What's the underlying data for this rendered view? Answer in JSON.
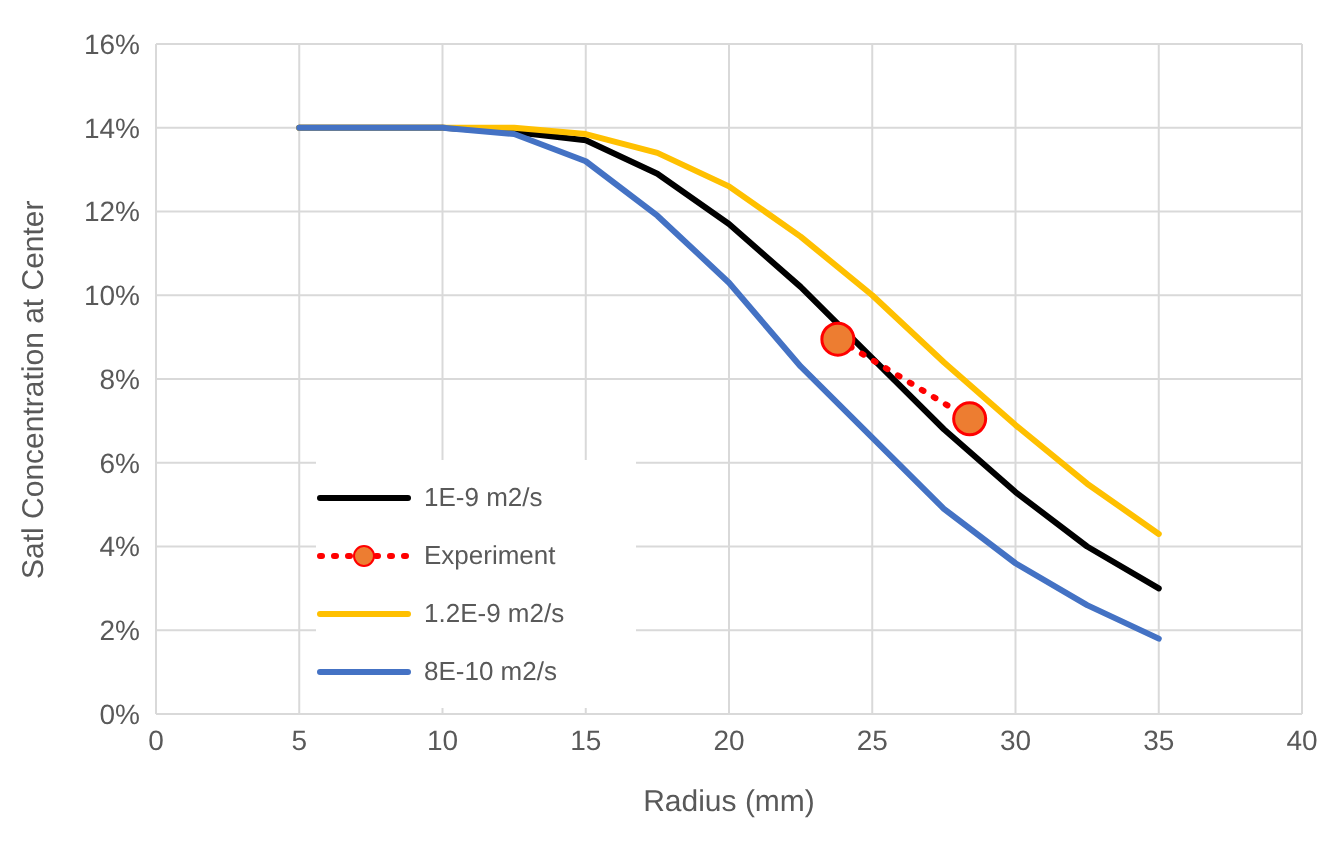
{
  "chart_data": {
    "type": "line",
    "xlabel": "Radius (mm)",
    "ylabel": "Satl Concentration at Center",
    "xlim": [
      0,
      40
    ],
    "xticks": [
      0,
      5,
      10,
      15,
      20,
      25,
      30,
      35,
      40
    ],
    "ylim": [
      0,
      16
    ],
    "yticks": [
      {
        "value": 0,
        "label": "0%"
      },
      {
        "value": 2,
        "label": "2%"
      },
      {
        "value": 4,
        "label": "4%"
      },
      {
        "value": 6,
        "label": "6%"
      },
      {
        "value": 8,
        "label": "8%"
      },
      {
        "value": 10,
        "label": "10%"
      },
      {
        "value": 12,
        "label": "12%"
      },
      {
        "value": 14,
        "label": "14%"
      },
      {
        "value": 16,
        "label": "16%"
      }
    ],
    "grid": true,
    "legend": "left",
    "marker": "none",
    "line_style": "solid",
    "x": [
      5,
      10,
      12.5,
      15,
      17.5,
      20,
      22.5,
      25,
      27.5,
      30,
      32.5,
      35
    ],
    "series": [
      {
        "name": "1E-9 m2/s",
        "color": "#000000",
        "values": [
          14,
          14,
          13.9,
          13.7,
          12.9,
          11.7,
          10.2,
          8.5,
          6.8,
          5.3,
          4.0,
          3.0
        ]
      },
      {
        "name": "Experiment",
        "color": "#ed7d31",
        "type": "line",
        "marker": "circle",
        "line_style": "dotted",
        "x": [
          23.8,
          28.4
        ],
        "values": [
          8.95,
          7.05
        ]
      },
      {
        "name": "1.2E-9 m2/s",
        "color": "#ffc000",
        "values": [
          14,
          14,
          14.0,
          13.85,
          13.4,
          12.6,
          11.4,
          10.0,
          8.4,
          6.9,
          5.5,
          4.3
        ]
      },
      {
        "name": "8E-10 m2/s",
        "color": "#4472c4",
        "values": [
          14,
          14,
          13.85,
          13.2,
          11.9,
          10.3,
          8.3,
          6.6,
          4.9,
          3.6,
          2.6,
          1.8
        ]
      }
    ]
  }
}
